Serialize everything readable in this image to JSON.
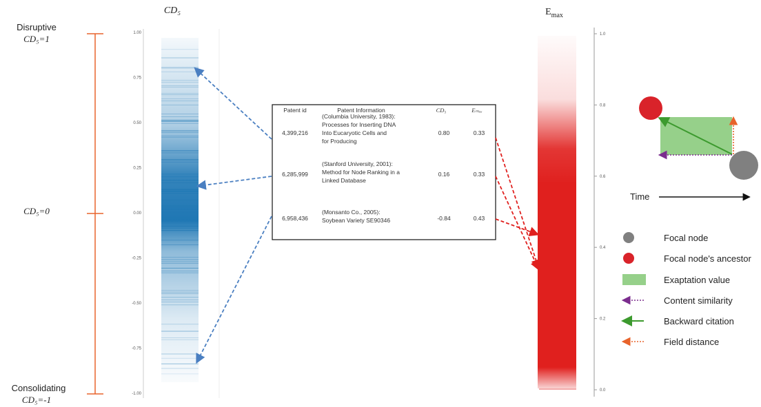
{
  "left_scale": {
    "top_label": "Disruptive",
    "top_value": "CD₅=1",
    "mid_value": "CD₅=0",
    "bottom_label": "Consolidating",
    "bottom_value": "CD₅=-1"
  },
  "cd5_panel": {
    "title": "CD₅",
    "ticks": [
      "1.00",
      "0.75",
      "0.50",
      "0.25",
      "0.00",
      "-0.25",
      "-0.50",
      "-0.75",
      "-1.00"
    ],
    "color": "#1f77b4"
  },
  "emax_panel": {
    "title": "E",
    "title_sub": "max",
    "ticks": [
      "1.0",
      "0.8",
      "0.6",
      "0.4",
      "0.2",
      "0.0"
    ],
    "color": "#e0201e"
  },
  "table": {
    "headers": [
      "Patent id",
      "Patent Information",
      "CD₅",
      "Eₘₐₓ"
    ],
    "rows": [
      {
        "id": "4,399,216",
        "info": [
          "(Columbia University, 1983):",
          "Processes for Inserting DNA",
          "Into Eucaryotic Cells and",
          "for Producing"
        ],
        "cd5": "0.80",
        "emax": "0.33"
      },
      {
        "id": "6,285,999",
        "info": [
          "(Stanford University, 2001):",
          "Method for Node Ranking in a",
          "Linked Database"
        ],
        "cd5": "0.16",
        "emax": "0.33"
      },
      {
        "id": "6,958,436",
        "info": [
          "(Monsanto Co., 2005):",
          "Soybean Variety SE90346"
        ],
        "cd5": "-0.84",
        "emax": "0.43"
      }
    ]
  },
  "diagram": {
    "time_label": "Time",
    "colors": {
      "focal": "#808080",
      "ancestor": "#d9232a",
      "exaptation": "#96d08a",
      "similarity": "#7b2d8e",
      "citation": "#3c9a2e",
      "field": "#e8632b"
    }
  },
  "legend": [
    {
      "icon": "gray-circle",
      "label": "Focal node"
    },
    {
      "icon": "red-circle",
      "label": "Focal node's ancestor"
    },
    {
      "icon": "green-rect",
      "label": "Exaptation value"
    },
    {
      "icon": "purple-dotted-arrow",
      "label": "Content similarity"
    },
    {
      "icon": "green-solid-arrow",
      "label": "Backward citation"
    },
    {
      "icon": "orange-dotted-arrow",
      "label": "Field distance"
    }
  ]
}
